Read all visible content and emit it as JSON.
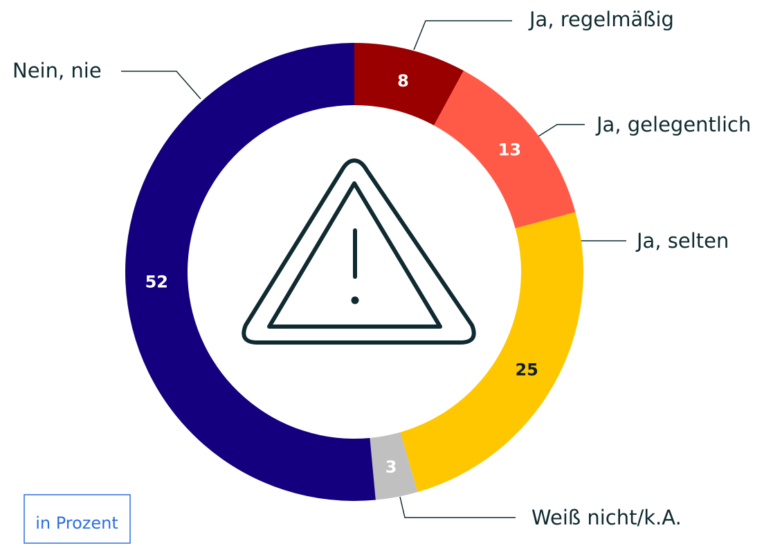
{
  "chart_data": {
    "type": "donut",
    "categories": [
      "Ja, regelmäßig",
      "Ja, gelegentlich",
      "Ja, selten",
      "Weiß nicht/k.A.",
      "Nein, nie"
    ],
    "values": [
      8,
      13,
      25,
      3,
      52
    ],
    "colors": [
      "#9b0000",
      "#ff5a47",
      "#ffc700",
      "#c0c0c0",
      "#14007f"
    ],
    "label_colors": [
      "#ffffff",
      "#ffffff",
      "#0f2027",
      "#ffffff",
      "#ffffff"
    ],
    "note": "in Prozent"
  }
}
